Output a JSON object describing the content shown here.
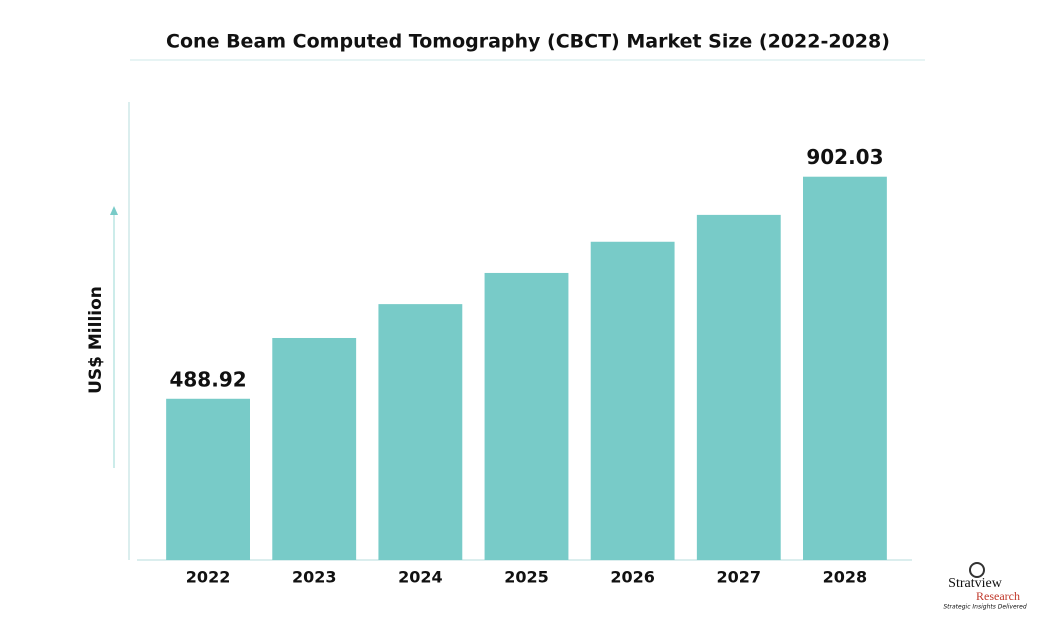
{
  "chart_data": {
    "type": "bar",
    "title": "Cone Beam Computed Tomography (CBCT) Market Size (2022-2028)",
    "y_label": "US$ Million",
    "categories": [
      "2022",
      "2023",
      "2024",
      "2025",
      "2026",
      "2027",
      "2028"
    ],
    "values": [
      488.92,
      602,
      665,
      723,
      781,
      831,
      902.03
    ],
    "value_labels": [
      "488.92",
      null,
      null,
      null,
      null,
      null,
      "902.03"
    ],
    "color": "#78cbc8",
    "ylim": [
      189,
      1041
    ]
  },
  "logo": {
    "name": "Stratview",
    "sub": "Research",
    "tagline": "Strategic Insights Delivered"
  }
}
